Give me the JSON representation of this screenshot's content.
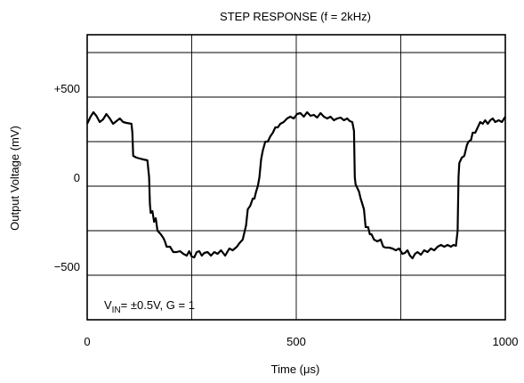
{
  "chart_data": {
    "type": "line",
    "title": "STEP RESPONSE (f = 2kHz)",
    "xlabel": "Time (μs)",
    "ylabel": "Output Voltage (mV)",
    "xlim": [
      0,
      1000
    ],
    "ylim": [
      -800,
      800
    ],
    "x_ticks": [
      {
        "value": 0,
        "label": "0"
      },
      {
        "value": 500,
        "label": "500"
      },
      {
        "value": 1000,
        "label": "1000"
      }
    ],
    "y_ticks": [
      {
        "value": 500,
        "label": "+500"
      },
      {
        "value": 0,
        "label": "0"
      },
      {
        "value": -500,
        "label": "−500"
      }
    ],
    "grid": true,
    "annotation": {
      "prefix": "V",
      "subscript": "IN",
      "suffix": "= ±0.5V, G = 1"
    },
    "series": [
      {
        "color": "#000000",
        "points": [
          [
            0,
            300
          ],
          [
            8,
            340
          ],
          [
            15,
            365
          ],
          [
            22,
            345
          ],
          [
            30,
            310
          ],
          [
            38,
            325
          ],
          [
            46,
            355
          ],
          [
            54,
            330
          ],
          [
            62,
            300
          ],
          [
            70,
            315
          ],
          [
            78,
            330
          ],
          [
            86,
            310
          ],
          [
            94,
            305
          ],
          [
            106,
            300
          ],
          [
            108,
            250
          ],
          [
            110,
            120
          ],
          [
            118,
            110
          ],
          [
            126,
            105
          ],
          [
            134,
            100
          ],
          [
            144,
            95
          ],
          [
            148,
            0
          ],
          [
            150,
            -150
          ],
          [
            152,
            -200
          ],
          [
            156,
            -190
          ],
          [
            160,
            -250
          ],
          [
            164,
            -230
          ],
          [
            168,
            -300
          ],
          [
            176,
            -320
          ],
          [
            182,
            -340
          ],
          [
            186,
            -360
          ],
          [
            190,
            -390
          ],
          [
            198,
            -390
          ],
          [
            206,
            -420
          ],
          [
            214,
            -420
          ],
          [
            222,
            -415
          ],
          [
            230,
            -430
          ],
          [
            238,
            -440
          ],
          [
            244,
            -415
          ],
          [
            250,
            -445
          ],
          [
            256,
            -450
          ],
          [
            262,
            -420
          ],
          [
            268,
            -415
          ],
          [
            274,
            -440
          ],
          [
            280,
            -425
          ],
          [
            288,
            -420
          ],
          [
            296,
            -440
          ],
          [
            304,
            -420
          ],
          [
            312,
            -430
          ],
          [
            320,
            -410
          ],
          [
            330,
            -440
          ],
          [
            340,
            -400
          ],
          [
            348,
            -410
          ],
          [
            358,
            -390
          ],
          [
            364,
            -370
          ],
          [
            372,
            -350
          ],
          [
            380,
            -270
          ],
          [
            384,
            -180
          ],
          [
            390,
            -160
          ],
          [
            396,
            -120
          ],
          [
            400,
            -120
          ],
          [
            404,
            -80
          ],
          [
            408,
            -50
          ],
          [
            412,
            0
          ],
          [
            416,
            100
          ],
          [
            420,
            150
          ],
          [
            426,
            200
          ],
          [
            432,
            200
          ],
          [
            438,
            230
          ],
          [
            444,
            250
          ],
          [
            450,
            280
          ],
          [
            456,
            280
          ],
          [
            462,
            300
          ],
          [
            470,
            310
          ],
          [
            478,
            330
          ],
          [
            486,
            340
          ],
          [
            494,
            330
          ],
          [
            502,
            355
          ],
          [
            510,
            360
          ],
          [
            518,
            340
          ],
          [
            526,
            365
          ],
          [
            534,
            345
          ],
          [
            542,
            350
          ],
          [
            550,
            335
          ],
          [
            558,
            360
          ],
          [
            566,
            340
          ],
          [
            574,
            330
          ],
          [
            582,
            340
          ],
          [
            590,
            320
          ],
          [
            598,
            330
          ],
          [
            606,
            335
          ],
          [
            614,
            320
          ],
          [
            622,
            330
          ],
          [
            628,
            315
          ],
          [
            634,
            310
          ],
          [
            638,
            260
          ],
          [
            640,
            0
          ],
          [
            642,
            -40
          ],
          [
            646,
            -60
          ],
          [
            650,
            -80
          ],
          [
            654,
            -120
          ],
          [
            658,
            -150
          ],
          [
            662,
            -180
          ],
          [
            666,
            -280
          ],
          [
            672,
            -280
          ],
          [
            676,
            -320
          ],
          [
            680,
            -320
          ],
          [
            686,
            -350
          ],
          [
            694,
            -360
          ],
          [
            702,
            -350
          ],
          [
            708,
            -390
          ],
          [
            714,
            -395
          ],
          [
            722,
            -395
          ],
          [
            730,
            -400
          ],
          [
            738,
            -410
          ],
          [
            746,
            -400
          ],
          [
            754,
            -430
          ],
          [
            760,
            -425
          ],
          [
            766,
            -410
          ],
          [
            772,
            -440
          ],
          [
            778,
            -455
          ],
          [
            784,
            -430
          ],
          [
            790,
            -420
          ],
          [
            798,
            -435
          ],
          [
            806,
            -410
          ],
          [
            814,
            -420
          ],
          [
            822,
            -400
          ],
          [
            830,
            -410
          ],
          [
            838,
            -390
          ],
          [
            846,
            -380
          ],
          [
            854,
            -390
          ],
          [
            862,
            -380
          ],
          [
            870,
            -390
          ],
          [
            876,
            -380
          ],
          [
            882,
            -385
          ],
          [
            886,
            -300
          ],
          [
            888,
            0
          ],
          [
            890,
            80
          ],
          [
            896,
            110
          ],
          [
            902,
            120
          ],
          [
            908,
            180
          ],
          [
            912,
            200
          ],
          [
            918,
            210
          ],
          [
            922,
            250
          ],
          [
            928,
            250
          ],
          [
            934,
            280
          ],
          [
            940,
            310
          ],
          [
            946,
            300
          ],
          [
            952,
            320
          ],
          [
            958,
            300
          ],
          [
            964,
            320
          ],
          [
            970,
            330
          ],
          [
            976,
            310
          ],
          [
            984,
            320
          ],
          [
            992,
            310
          ],
          [
            1000,
            340
          ]
        ]
      }
    ]
  }
}
